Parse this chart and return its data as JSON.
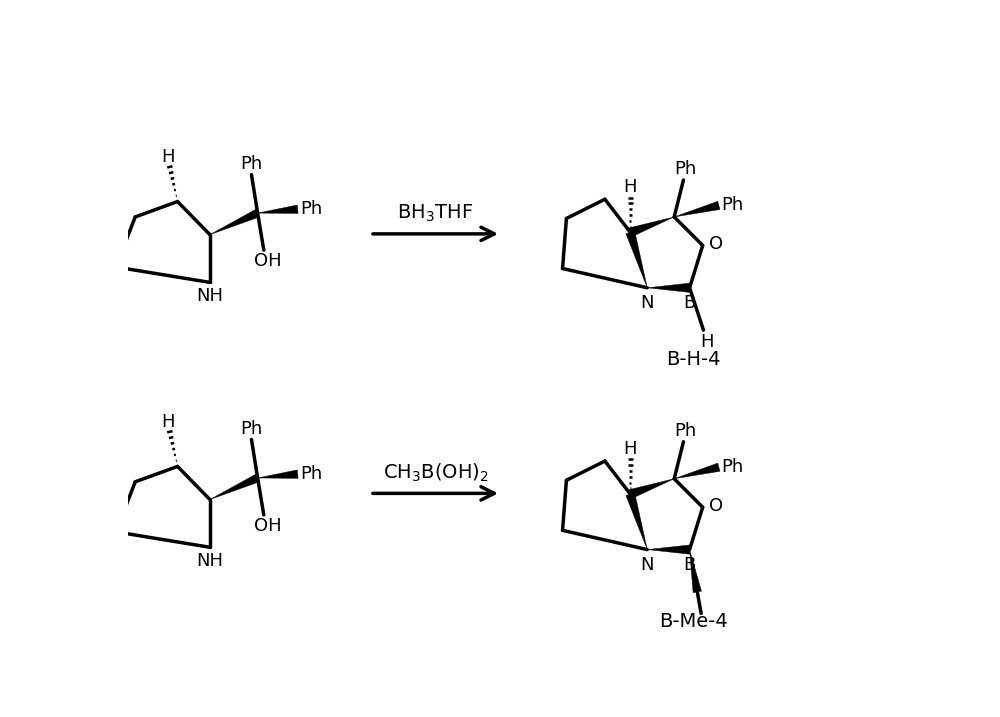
{
  "background_color": "#ffffff",
  "line_color": "#000000",
  "line_width": 2.5,
  "font_size": 13,
  "reagent1": "BH$_3$THF",
  "reagent2": "CH$_3$B(OH)$_2$",
  "product1_label": "B-H-4",
  "product2_label": "B-Me-4"
}
